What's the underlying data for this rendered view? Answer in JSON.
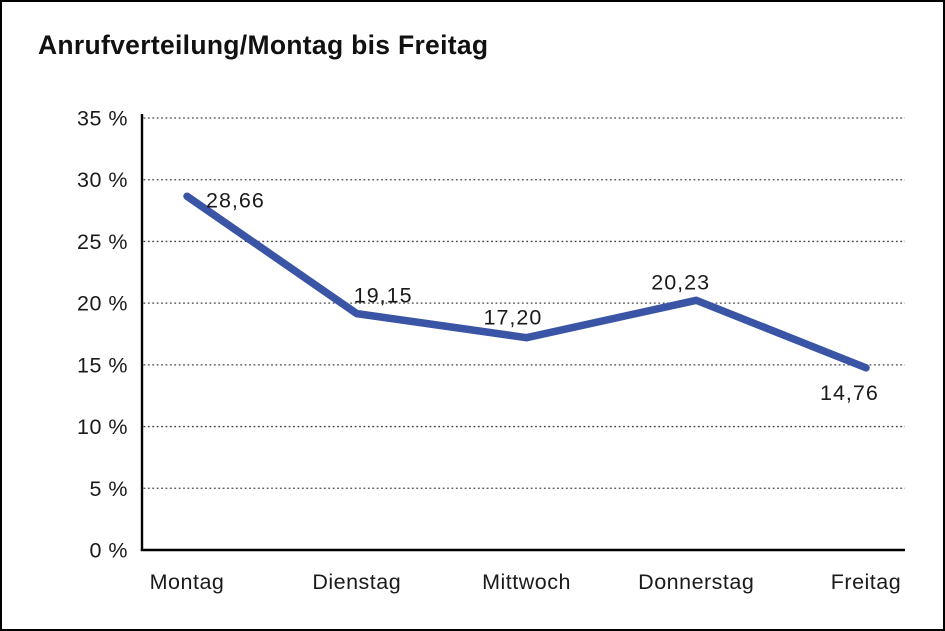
{
  "title": "Anrufverteilung/Montag bis Freitag",
  "chart_data": {
    "type": "line",
    "title": "Anrufverteilung/Montag bis Freitag",
    "categories": [
      "Montag",
      "Dienstag",
      "Mittwoch",
      "Donnerstag",
      "Freitag"
    ],
    "values": [
      28.66,
      19.15,
      17.2,
      20.23,
      14.76
    ],
    "value_labels": [
      "28,66",
      "19,15",
      "17,20",
      "20,23",
      "14,76"
    ],
    "series_name": "Anrufverteilung",
    "xlabel": "",
    "ylabel": "",
    "ylim": [
      0,
      35
    ],
    "ytick_step": 5,
    "ytick_labels": [
      "0 %",
      "5 %",
      "10 %",
      "15 %",
      "20 %",
      "25 %",
      "30 %",
      "35 %"
    ],
    "grid": "horizontal-dotted",
    "legend": null,
    "line_color": "#3A55A5"
  },
  "colors": {
    "line": "#3A55A5",
    "text": "#1A1A1A",
    "grid": "#454545",
    "axis": "#000000",
    "background": "#FFFFFF",
    "border": "#000000"
  }
}
